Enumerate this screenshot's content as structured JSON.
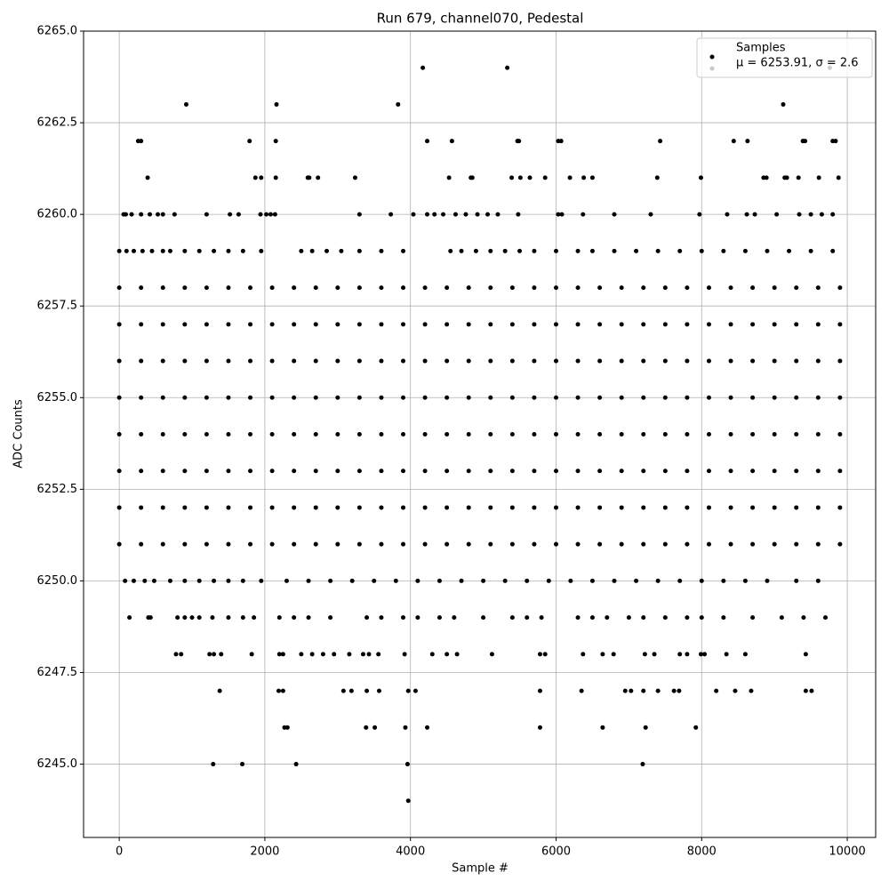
{
  "chart_data": {
    "type": "scatter",
    "title": "Run 679, channel070, Pedestal",
    "xlabel": "Sample #",
    "ylabel": "ADC Counts",
    "xlim": [
      -490,
      10390
    ],
    "ylim": [
      6243.0,
      6265.0
    ],
    "xticks": [
      0,
      2000,
      4000,
      6000,
      8000,
      10000
    ],
    "yticks": [
      {
        "value": 6245,
        "label": "6245.0"
      },
      {
        "value": 6247.5,
        "label": "6247.5"
      },
      {
        "value": 6250,
        "label": "6250.0"
      },
      {
        "value": 6252.5,
        "label": "6252.5"
      },
      {
        "value": 6255,
        "label": "6255.0"
      },
      {
        "value": 6257.5,
        "label": "6257.5"
      },
      {
        "value": 6260,
        "label": "6260.0"
      },
      {
        "value": 6262.5,
        "label": "6262.5"
      },
      {
        "value": 6265,
        "label": "6265.0"
      }
    ],
    "grid": true,
    "legend_loc": "upper right",
    "annotation": {
      "text": "μ = 6253.91, σ = 2.6",
      "color": "#c8c8c8"
    },
    "series": [
      {
        "name": "Samples",
        "color": "#000000",
        "x": [
          4170,
          5330,
          9760,
          920,
          2160,
          3830,
          9120,
          260,
          300,
          1790,
          2150,
          4230,
          4570,
          5470,
          5490,
          6030,
          6070,
          7430,
          8440,
          8630,
          9390,
          9420,
          9800,
          9840,
          390,
          1870,
          1950,
          2150,
          2590,
          2610,
          2730,
          3240,
          4530,
          4830,
          4850,
          5390,
          5510,
          5640,
          5850,
          6190,
          6380,
          6500,
          7390,
          7990,
          8850,
          8890,
          9140,
          9170,
          9330,
          9610,
          9880,
          60,
          90,
          170,
          300,
          420,
          530,
          600,
          760,
          1200,
          1520,
          1640,
          1940,
          2020,
          2080,
          2140,
          3300,
          3730,
          4040,
          4230,
          4330,
          4450,
          4620,
          4760,
          4920,
          5060,
          5200,
          5480,
          6030,
          6080,
          6370,
          6800,
          7300,
          7970,
          8350,
          8620,
          8730,
          9030,
          9340,
          9500,
          9650,
          9800,
          0,
          100,
          200,
          320,
          450,
          600,
          700,
          900,
          1100,
          1300,
          1500,
          1700,
          1950,
          2500,
          2650,
          2850,
          3050,
          3300,
          3600,
          3900,
          4550,
          4700,
          4900,
          5100,
          5300,
          5500,
          5700,
          6000,
          6300,
          6500,
          6800,
          7100,
          7400,
          7700,
          8000,
          8300,
          8600,
          8900,
          9200,
          9500,
          9800,
          0,
          300,
          600,
          900,
          1200,
          1500,
          1800,
          2100,
          2400,
          2700,
          3000,
          3300,
          3600,
          3900,
          4200,
          4500,
          4800,
          5100,
          5400,
          5700,
          6000,
          6300,
          6600,
          6900,
          7200,
          7500,
          7800,
          8100,
          8400,
          8700,
          9000,
          9300,
          9600,
          9900,
          0,
          300,
          600,
          900,
          1200,
          1500,
          1800,
          2100,
          2400,
          2700,
          3000,
          3300,
          3600,
          3900,
          4200,
          4500,
          4800,
          5100,
          5400,
          5700,
          6000,
          6300,
          6600,
          6900,
          7200,
          7500,
          7800,
          8100,
          8400,
          8700,
          9000,
          9300,
          9600,
          9900,
          0,
          300,
          600,
          900,
          1200,
          1500,
          1800,
          2100,
          2400,
          2700,
          3000,
          3300,
          3600,
          3900,
          4200,
          4500,
          4800,
          5100,
          5400,
          5700,
          6000,
          6300,
          6600,
          6900,
          7200,
          7500,
          7800,
          8100,
          8400,
          8700,
          9000,
          9300,
          9600,
          9900,
          0,
          300,
          600,
          900,
          1200,
          1500,
          1800,
          2100,
          2400,
          2700,
          3000,
          3300,
          3600,
          3900,
          4200,
          4500,
          4800,
          5100,
          5400,
          5700,
          6000,
          6300,
          6600,
          6900,
          7200,
          7500,
          7800,
          8100,
          8400,
          8700,
          9000,
          9300,
          9600,
          9900,
          0,
          300,
          600,
          900,
          1200,
          1500,
          1800,
          2100,
          2400,
          2700,
          3000,
          3300,
          3600,
          3900,
          4200,
          4500,
          4800,
          5100,
          5400,
          5700,
          6000,
          6300,
          6600,
          6900,
          7200,
          7500,
          7800,
          8100,
          8400,
          8700,
          9000,
          9300,
          9600,
          9900,
          0,
          300,
          600,
          900,
          1200,
          1500,
          1800,
          2100,
          2400,
          2700,
          3000,
          3300,
          3600,
          3900,
          4200,
          4500,
          4800,
          5100,
          5400,
          5700,
          6000,
          6300,
          6600,
          6900,
          7200,
          7500,
          7800,
          8100,
          8400,
          8700,
          9000,
          9300,
          9600,
          9900,
          0,
          300,
          600,
          900,
          1200,
          1500,
          1800,
          2100,
          2400,
          2700,
          3000,
          3300,
          3600,
          3900,
          4200,
          4500,
          4800,
          5100,
          5400,
          5700,
          6000,
          6300,
          6600,
          6900,
          7200,
          7500,
          7800,
          8100,
          8400,
          8700,
          9000,
          9300,
          9600,
          9900,
          0,
          300,
          600,
          900,
          1200,
          1500,
          1800,
          2100,
          2400,
          2700,
          3000,
          3300,
          3600,
          3900,
          4200,
          4500,
          4800,
          5100,
          5400,
          5700,
          6000,
          6300,
          6600,
          6900,
          7200,
          7500,
          7800,
          8100,
          8400,
          8700,
          9000,
          9300,
          9600,
          9900,
          80,
          200,
          350,
          480,
          700,
          900,
          1100,
          1300,
          1500,
          1700,
          1950,
          2300,
          2600,
          2900,
          3200,
          3500,
          3800,
          4100,
          4400,
          4700,
          5000,
          5300,
          5600,
          5900,
          6200,
          6500,
          6800,
          7100,
          7400,
          7700,
          8000,
          8300,
          8600,
          8900,
          9300,
          9600,
          140,
          400,
          430,
          800,
          900,
          1000,
          1100,
          1280,
          1500,
          1700,
          1850,
          2200,
          2400,
          2600,
          2900,
          3400,
          3600,
          3900,
          4100,
          4400,
          4600,
          5000,
          5400,
          5600,
          5800,
          6300,
          6500,
          6700,
          7000,
          7200,
          7500,
          7800,
          8000,
          8300,
          8700,
          9100,
          9400,
          9700,
          780,
          850,
          1240,
          1300,
          1400,
          1820,
          2200,
          2250,
          2500,
          2650,
          2800,
          2950,
          3160,
          3350,
          3430,
          3560,
          3920,
          4300,
          4500,
          4640,
          5120,
          5780,
          5850,
          6370,
          6640,
          6790,
          7220,
          7350,
          7700,
          7800,
          7990,
          8040,
          8340,
          8600,
          9430,
          1380,
          2190,
          2250,
          3080,
          3190,
          3400,
          3570,
          3970,
          4070,
          5780,
          6350,
          6950,
          7030,
          7200,
          7400,
          7620,
          7690,
          8200,
          8460,
          8680,
          9430,
          9510,
          2270,
          2310,
          3390,
          3510,
          3930,
          4230,
          5780,
          6640,
          7230,
          7920,
          1290,
          1690,
          2430,
          3960,
          7190,
          3970
        ],
        "values": [
          6264,
          6264,
          6264,
          6263,
          6263,
          6263,
          6263,
          6262,
          6262,
          6262,
          6262,
          6262,
          6262,
          6262,
          6262,
          6262,
          6262,
          6262,
          6262,
          6262,
          6262,
          6262,
          6262,
          6262,
          6261,
          6261,
          6261,
          6261,
          6261,
          6261,
          6261,
          6261,
          6261,
          6261,
          6261,
          6261,
          6261,
          6261,
          6261,
          6261,
          6261,
          6261,
          6261,
          6261,
          6261,
          6261,
          6261,
          6261,
          6261,
          6261,
          6261,
          6260,
          6260,
          6260,
          6260,
          6260,
          6260,
          6260,
          6260,
          6260,
          6260,
          6260,
          6260,
          6260,
          6260,
          6260,
          6260,
          6260,
          6260,
          6260,
          6260,
          6260,
          6260,
          6260,
          6260,
          6260,
          6260,
          6260,
          6260,
          6260,
          6260,
          6260,
          6260,
          6260,
          6260,
          6260,
          6260,
          6260,
          6260,
          6260,
          6260,
          6260,
          6259,
          6259,
          6259,
          6259,
          6259,
          6259,
          6259,
          6259,
          6259,
          6259,
          6259,
          6259,
          6259,
          6259,
          6259,
          6259,
          6259,
          6259,
          6259,
          6259,
          6259,
          6259,
          6259,
          6259,
          6259,
          6259,
          6259,
          6259,
          6259,
          6259,
          6259,
          6259,
          6259,
          6259,
          6259,
          6259,
          6259,
          6259,
          6259,
          6259,
          6259,
          6258,
          6258,
          6258,
          6258,
          6258,
          6258,
          6258,
          6258,
          6258,
          6258,
          6258,
          6258,
          6258,
          6258,
          6258,
          6258,
          6258,
          6258,
          6258,
          6258,
          6258,
          6258,
          6258,
          6258,
          6258,
          6258,
          6258,
          6258,
          6258,
          6258,
          6258,
          6258,
          6258,
          6258,
          6257,
          6257,
          6257,
          6257,
          6257,
          6257,
          6257,
          6257,
          6257,
          6257,
          6257,
          6257,
          6257,
          6257,
          6257,
          6257,
          6257,
          6257,
          6257,
          6257,
          6257,
          6257,
          6257,
          6257,
          6257,
          6257,
          6257,
          6257,
          6257,
          6257,
          6257,
          6257,
          6257,
          6257,
          6256,
          6256,
          6256,
          6256,
          6256,
          6256,
          6256,
          6256,
          6256,
          6256,
          6256,
          6256,
          6256,
          6256,
          6256,
          6256,
          6256,
          6256,
          6256,
          6256,
          6256,
          6256,
          6256,
          6256,
          6256,
          6256,
          6256,
          6256,
          6256,
          6256,
          6256,
          6256,
          6256,
          6256,
          6255,
          6255,
          6255,
          6255,
          6255,
          6255,
          6255,
          6255,
          6255,
          6255,
          6255,
          6255,
          6255,
          6255,
          6255,
          6255,
          6255,
          6255,
          6255,
          6255,
          6255,
          6255,
          6255,
          6255,
          6255,
          6255,
          6255,
          6255,
          6255,
          6255,
          6255,
          6255,
          6255,
          6255,
          6254,
          6254,
          6254,
          6254,
          6254,
          6254,
          6254,
          6254,
          6254,
          6254,
          6254,
          6254,
          6254,
          6254,
          6254,
          6254,
          6254,
          6254,
          6254,
          6254,
          6254,
          6254,
          6254,
          6254,
          6254,
          6254,
          6254,
          6254,
          6254,
          6254,
          6254,
          6254,
          6254,
          6254,
          6253,
          6253,
          6253,
          6253,
          6253,
          6253,
          6253,
          6253,
          6253,
          6253,
          6253,
          6253,
          6253,
          6253,
          6253,
          6253,
          6253,
          6253,
          6253,
          6253,
          6253,
          6253,
          6253,
          6253,
          6253,
          6253,
          6253,
          6253,
          6253,
          6253,
          6253,
          6253,
          6253,
          6253,
          6252,
          6252,
          6252,
          6252,
          6252,
          6252,
          6252,
          6252,
          6252,
          6252,
          6252,
          6252,
          6252,
          6252,
          6252,
          6252,
          6252,
          6252,
          6252,
          6252,
          6252,
          6252,
          6252,
          6252,
          6252,
          6252,
          6252,
          6252,
          6252,
          6252,
          6252,
          6252,
          6252,
          6252,
          6251,
          6251,
          6251,
          6251,
          6251,
          6251,
          6251,
          6251,
          6251,
          6251,
          6251,
          6251,
          6251,
          6251,
          6251,
          6251,
          6251,
          6251,
          6251,
          6251,
          6251,
          6251,
          6251,
          6251,
          6251,
          6251,
          6251,
          6251,
          6251,
          6251,
          6251,
          6251,
          6251,
          6251,
          6250,
          6250,
          6250,
          6250,
          6250,
          6250,
          6250,
          6250,
          6250,
          6250,
          6250,
          6250,
          6250,
          6250,
          6250,
          6250,
          6250,
          6250,
          6250,
          6250,
          6250,
          6250,
          6250,
          6250,
          6250,
          6250,
          6250,
          6250,
          6250,
          6250,
          6250,
          6250,
          6250,
          6250,
          6250,
          6250,
          6249,
          6249,
          6249,
          6249,
          6249,
          6249,
          6249,
          6249,
          6249,
          6249,
          6249,
          6249,
          6249,
          6249,
          6249,
          6249,
          6249,
          6249,
          6249,
          6249,
          6249,
          6249,
          6249,
          6249,
          6249,
          6249,
          6249,
          6249,
          6249,
          6249,
          6249,
          6249,
          6249,
          6249,
          6249,
          6249,
          6249,
          6249,
          6248,
          6248,
          6248,
          6248,
          6248,
          6248,
          6248,
          6248,
          6248,
          6248,
          6248,
          6248,
          6248,
          6248,
          6248,
          6248,
          6248,
          6248,
          6248,
          6248,
          6248,
          6248,
          6248,
          6248,
          6248,
          6248,
          6248,
          6248,
          6248,
          6248,
          6248,
          6248,
          6248,
          6248,
          6248,
          6247,
          6247,
          6247,
          6247,
          6247,
          6247,
          6247,
          6247,
          6247,
          6247,
          6247,
          6247,
          6247,
          6247,
          6247,
          6247,
          6247,
          6247,
          6247,
          6247,
          6247,
          6247,
          6246,
          6246,
          6246,
          6246,
          6246,
          6246,
          6246,
          6246,
          6246,
          6246,
          6245,
          6245,
          6245,
          6245,
          6245,
          6244
        ]
      }
    ]
  }
}
